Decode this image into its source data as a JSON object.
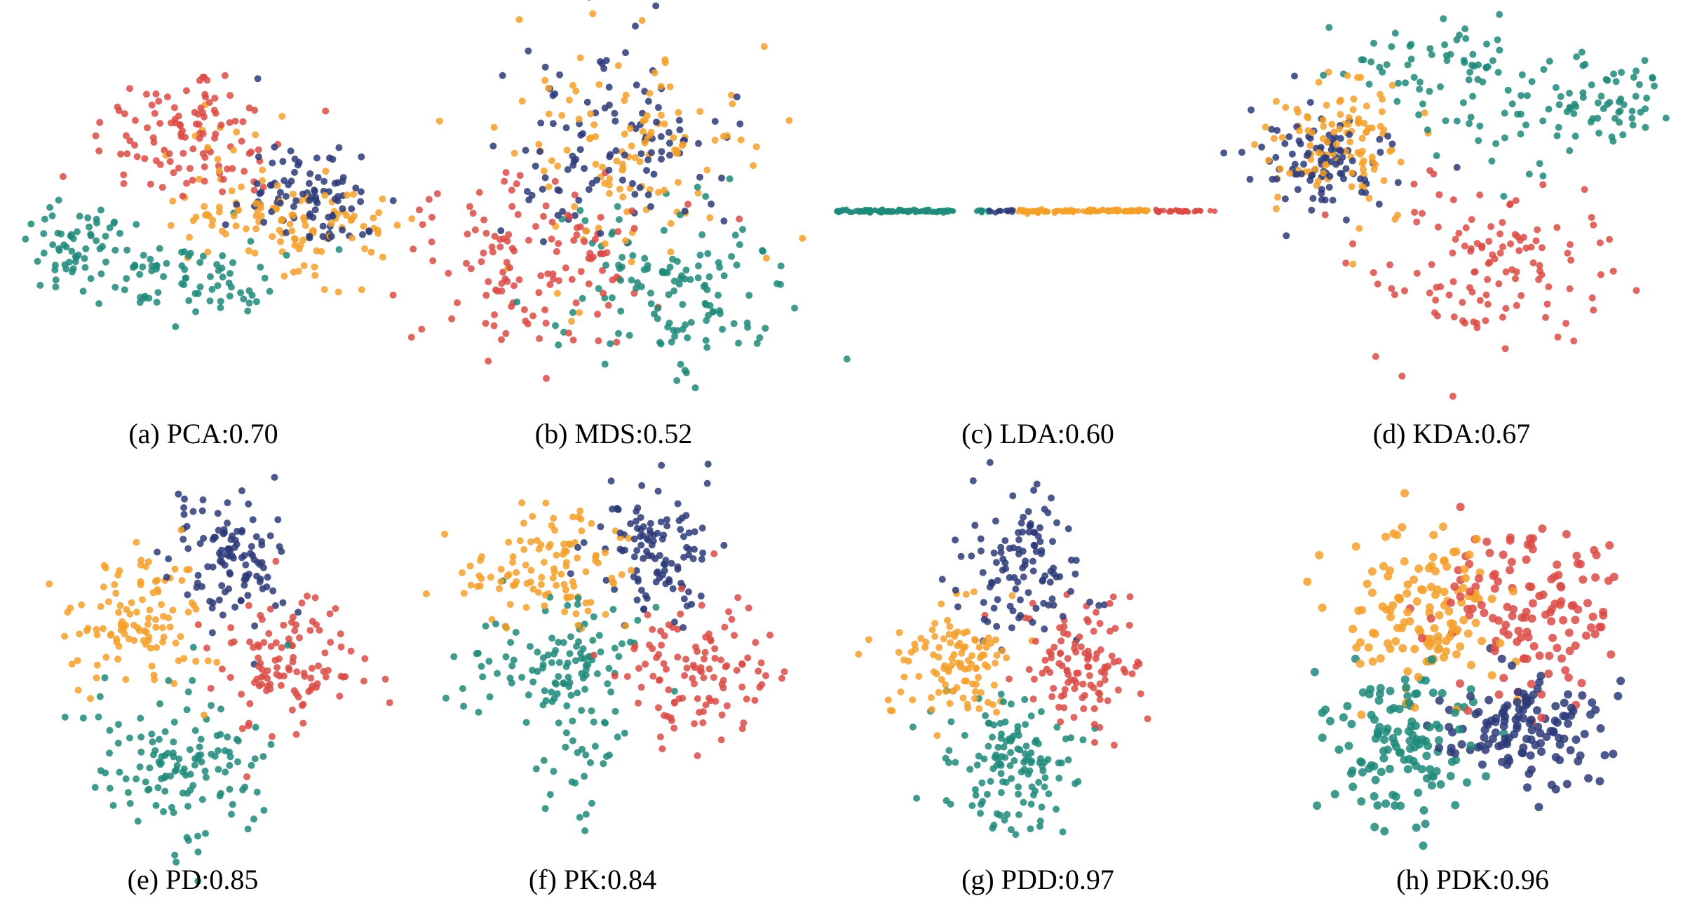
{
  "colors": {
    "teal": "#1e8a7a",
    "orange": "#f3a02a",
    "red": "#db4b45",
    "navy": "#2d3a78"
  },
  "panels": [
    {
      "id": "a",
      "caption": "(a) PCA:0.70"
    },
    {
      "id": "b",
      "caption": "(b) MDS:0.52"
    },
    {
      "id": "c",
      "caption": "(c) LDA:0.60"
    },
    {
      "id": "d",
      "caption": "(d) KDA:0.67"
    },
    {
      "id": "e",
      "caption": "(e) PD:0.85"
    },
    {
      "id": "f",
      "caption": "(f) PK:0.84"
    },
    {
      "id": "g",
      "caption": "(g) PDD:0.97"
    },
    {
      "id": "h",
      "caption": "(h) PDK:0.96"
    }
  ],
  "chart_data": [
    {
      "type": "scatter",
      "method": "PCA",
      "score": 0.7,
      "title": "(a) PCA:0.70",
      "series_colors": [
        "teal",
        "orange",
        "red",
        "navy"
      ]
    },
    {
      "type": "scatter",
      "method": "MDS",
      "score": 0.52,
      "title": "(b) MDS:0.52",
      "series_colors": [
        "teal",
        "orange",
        "red",
        "navy"
      ]
    },
    {
      "type": "scatter",
      "method": "LDA",
      "score": 0.6,
      "title": "(c) LDA:0.60",
      "series_colors": [
        "teal",
        "orange",
        "red",
        "navy"
      ],
      "dimensions": 1
    },
    {
      "type": "scatter",
      "method": "KDA",
      "score": 0.67,
      "title": "(d) KDA:0.67",
      "series_colors": [
        "teal",
        "orange",
        "red",
        "navy"
      ]
    },
    {
      "type": "scatter",
      "method": "PD",
      "score": 0.85,
      "title": "(e) PD:0.85",
      "series_colors": [
        "teal",
        "orange",
        "red",
        "navy"
      ]
    },
    {
      "type": "scatter",
      "method": "PK",
      "score": 0.84,
      "title": "(f) PK:0.84",
      "series_colors": [
        "teal",
        "orange",
        "red",
        "navy"
      ]
    },
    {
      "type": "scatter",
      "method": "PDD",
      "score": 0.97,
      "title": "(g) PDD:0.97",
      "series_colors": [
        "teal",
        "orange",
        "red",
        "navy"
      ]
    },
    {
      "type": "scatter",
      "method": "PDK",
      "score": 0.96,
      "title": "(h) PDK:0.96",
      "series_colors": [
        "teal",
        "orange",
        "red",
        "navy"
      ]
    }
  ]
}
